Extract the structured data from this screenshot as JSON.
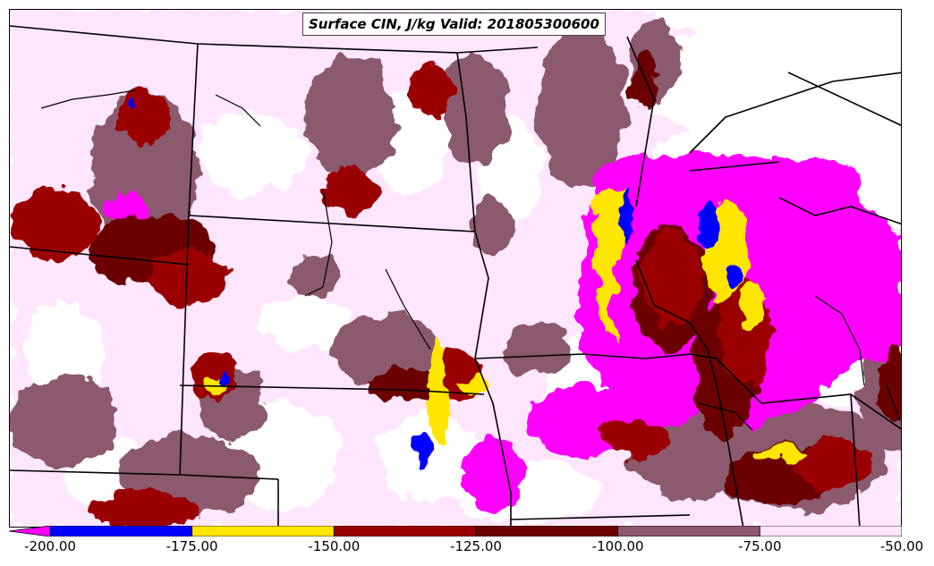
{
  "title": "Surface CIN, J/kg Valid: 201805300600",
  "colorbar": {
    "ticks": [
      "-200.00",
      "-175.00",
      "-150.00",
      "-125.00",
      "-100.00",
      "-75.00",
      "-50.00"
    ],
    "tick_values": [
      -200,
      -175,
      -150,
      -125,
      -100,
      -75,
      -50
    ],
    "segments": [
      {
        "from": -200,
        "to": -175,
        "color": "#0000ff"
      },
      {
        "from": -175,
        "to": -150,
        "color": "#ffe600"
      },
      {
        "from": -150,
        "to": -125,
        "color": "#9b0000"
      },
      {
        "from": -125,
        "to": -100,
        "color": "#6b0000"
      },
      {
        "from": -100,
        "to": -75,
        "color": "#8b5a6e"
      },
      {
        "from": -75,
        "to": -50,
        "color": "#ffe6ff"
      }
    ],
    "under_color": "#ff00ff"
  },
  "colors": {
    "magenta": "#ff00ff",
    "blue": "#0000ff",
    "yellow": "#ffe600",
    "red": "#9b0000",
    "darkred": "#6b0000",
    "mauve": "#8b5a6e",
    "pink": "#ffe6ff",
    "border": "#000000"
  }
}
